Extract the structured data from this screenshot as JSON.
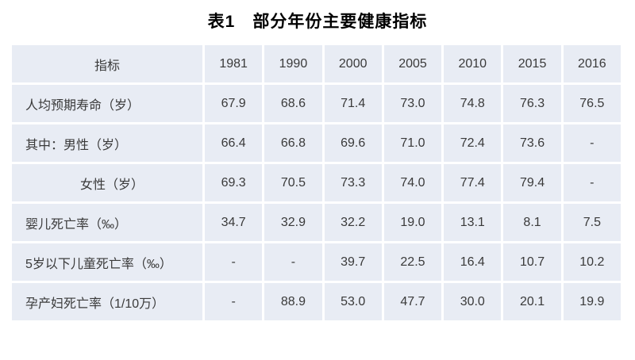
{
  "title": "表1　部分年份主要健康指标",
  "colors": {
    "cell_bg": "#e8ecf4",
    "grid": "#ffffff",
    "text": "#3a3a3a",
    "title_text": "#000000"
  },
  "chart_data": {
    "type": "table",
    "title": "表1　部分年份主要健康指标",
    "columns": [
      "指标",
      "1981",
      "1990",
      "2000",
      "2005",
      "2010",
      "2015",
      "2016"
    ],
    "rows": [
      {
        "label": "人均预期寿命（岁）",
        "indent": false,
        "values": [
          "67.9",
          "68.6",
          "71.4",
          "73.0",
          "74.8",
          "76.3",
          "76.5"
        ]
      },
      {
        "label": "其中：男性（岁）",
        "indent": false,
        "values": [
          "66.4",
          "66.8",
          "69.6",
          "71.0",
          "72.4",
          "73.6",
          "-"
        ]
      },
      {
        "label": "女性（岁）",
        "indent": true,
        "values": [
          "69.3",
          "70.5",
          "73.3",
          "74.0",
          "77.4",
          "79.4",
          "-"
        ]
      },
      {
        "label": "婴儿死亡率（‰）",
        "indent": false,
        "values": [
          "34.7",
          "32.9",
          "32.2",
          "19.0",
          "13.1",
          "8.1",
          "7.5"
        ]
      },
      {
        "label": "5岁以下儿童死亡率（‰）",
        "indent": false,
        "values": [
          "-",
          "-",
          "39.7",
          "22.5",
          "16.4",
          "10.7",
          "10.2"
        ]
      },
      {
        "label": "孕产妇死亡率（1/10万）",
        "indent": false,
        "values": [
          "-",
          "88.9",
          "53.0",
          "47.7",
          "30.0",
          "20.1",
          "19.9"
        ]
      }
    ]
  }
}
